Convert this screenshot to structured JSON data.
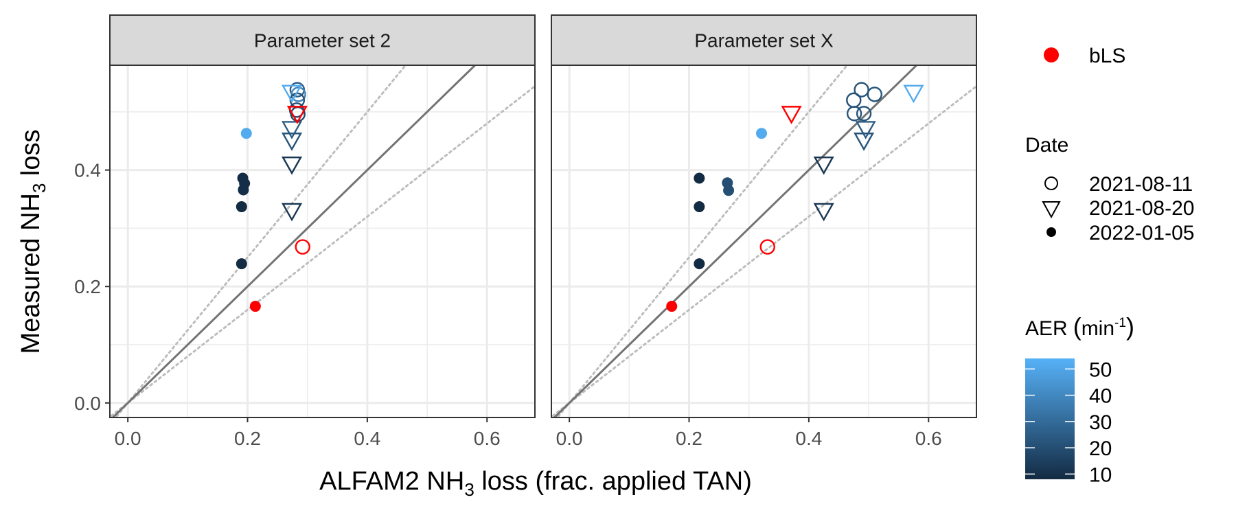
{
  "chart_data": {
    "type": "scatter",
    "xlabel": "ALFAM2 NH3 loss (frac. applied TAN)",
    "xlabel_parts": {
      "pre": "ALFAM2 NH",
      "sub": "3",
      "post": " loss (frac. applied TAN)"
    },
    "ylabel": "Measured NH3 loss",
    "ylabel_parts": {
      "pre": "Measured NH",
      "sub": "3",
      "post": " loss"
    },
    "xlim": [
      -0.03,
      0.68
    ],
    "ylim": [
      -0.025,
      0.58
    ],
    "x_ticks": [
      0.0,
      0.2,
      0.4,
      0.6
    ],
    "x_tick_labels": [
      "0.0",
      "0.2",
      "0.4",
      "0.6"
    ],
    "y_ticks": [
      0.0,
      0.2,
      0.4
    ],
    "y_tick_labels": [
      "0.0",
      "0.2",
      "0.4"
    ],
    "grid": true,
    "reference_lines": {
      "identity_slope": 1,
      "dotted_slopes": [
        0.8,
        1.25
      ]
    },
    "panels": [
      {
        "title": "Parameter set 2",
        "points": [
          {
            "x": 0.192,
            "y": 0.386,
            "date": "2022-01-05",
            "aer": 8
          },
          {
            "x": 0.195,
            "y": 0.377,
            "date": "2022-01-05",
            "aer": 9
          },
          {
            "x": 0.193,
            "y": 0.366,
            "date": "2022-01-05",
            "aer": 9
          },
          {
            "x": 0.19,
            "y": 0.337,
            "date": "2022-01-05",
            "aer": 8
          },
          {
            "x": 0.19,
            "y": 0.239,
            "date": "2022-01-05",
            "aer": 8
          },
          {
            "x": 0.198,
            "y": 0.463,
            "date": "2022-01-05",
            "aer": 52
          },
          {
            "x": 0.283,
            "y": 0.538,
            "date": "2021-08-11",
            "aer": 25
          },
          {
            "x": 0.285,
            "y": 0.53,
            "date": "2021-08-11",
            "aer": 38
          },
          {
            "x": 0.283,
            "y": 0.52,
            "date": "2021-08-11",
            "aer": 22
          },
          {
            "x": 0.282,
            "y": 0.503,
            "date": "2021-08-11",
            "aer": 20
          },
          {
            "x": 0.284,
            "y": 0.496,
            "date": "2021-08-11",
            "aer": 18
          },
          {
            "x": 0.274,
            "y": 0.533,
            "date": "2021-08-20",
            "aer": 52
          },
          {
            "x": 0.274,
            "y": 0.471,
            "date": "2021-08-20",
            "aer": 25
          },
          {
            "x": 0.274,
            "y": 0.451,
            "date": "2021-08-20",
            "aer": 22
          },
          {
            "x": 0.274,
            "y": 0.41,
            "date": "2021-08-20",
            "aer": 12
          },
          {
            "x": 0.274,
            "y": 0.33,
            "date": "2021-08-20",
            "aer": 12
          },
          {
            "x": 0.283,
            "y": 0.497,
            "date": "2021-08-20",
            "group": "bLS"
          },
          {
            "x": 0.292,
            "y": 0.268,
            "date": "2021-08-11",
            "group": "bLS"
          },
          {
            "x": 0.213,
            "y": 0.166,
            "date": "2022-01-05",
            "group": "bLS"
          }
        ]
      },
      {
        "title": "Parameter set X",
        "points": [
          {
            "x": 0.217,
            "y": 0.386,
            "date": "2022-01-05",
            "aer": 8
          },
          {
            "x": 0.217,
            "y": 0.337,
            "date": "2022-01-05",
            "aer": 8
          },
          {
            "x": 0.217,
            "y": 0.239,
            "date": "2022-01-05",
            "aer": 8
          },
          {
            "x": 0.264,
            "y": 0.378,
            "date": "2022-01-05",
            "aer": 20
          },
          {
            "x": 0.266,
            "y": 0.365,
            "date": "2022-01-05",
            "aer": 20
          },
          {
            "x": 0.321,
            "y": 0.463,
            "date": "2022-01-05",
            "aer": 52
          },
          {
            "x": 0.488,
            "y": 0.538,
            "date": "2021-08-11",
            "aer": 22
          },
          {
            "x": 0.51,
            "y": 0.53,
            "date": "2021-08-11",
            "aer": 22
          },
          {
            "x": 0.475,
            "y": 0.52,
            "date": "2021-08-11",
            "aer": 20
          },
          {
            "x": 0.476,
            "y": 0.497,
            "date": "2021-08-11",
            "aer": 22
          },
          {
            "x": 0.492,
            "y": 0.497,
            "date": "2021-08-11",
            "aer": 22
          },
          {
            "x": 0.575,
            "y": 0.533,
            "date": "2021-08-20",
            "aer": 52
          },
          {
            "x": 0.495,
            "y": 0.471,
            "date": "2021-08-20",
            "aer": 25
          },
          {
            "x": 0.492,
            "y": 0.451,
            "date": "2021-08-20",
            "aer": 22
          },
          {
            "x": 0.425,
            "y": 0.41,
            "date": "2021-08-20",
            "aer": 12
          },
          {
            "x": 0.425,
            "y": 0.33,
            "date": "2021-08-20",
            "aer": 12
          },
          {
            "x": 0.371,
            "y": 0.497,
            "date": "2021-08-20",
            "group": "bLS"
          },
          {
            "x": 0.331,
            "y": 0.268,
            "date": "2021-08-11",
            "group": "bLS"
          },
          {
            "x": 0.171,
            "y": 0.166,
            "date": "2022-01-05",
            "group": "bLS"
          }
        ]
      }
    ],
    "legend": {
      "placement": "right",
      "group_legend": {
        "label": "bLS",
        "color": "#ff0000"
      },
      "date_legend": {
        "title": "Date",
        "items": [
          {
            "label": "2021-08-11",
            "shape": "circle-open"
          },
          {
            "label": "2021-08-20",
            "shape": "triangle-down-open"
          },
          {
            "label": "2022-01-05",
            "shape": "circle-filled"
          }
        ]
      },
      "colorbar": {
        "title": "AER",
        "title_unit": "(min-1)",
        "title_unit_parts": {
          "open": "(",
          "base": "min",
          "sup": "-1",
          "close": ")"
        },
        "range": [
          8,
          54
        ],
        "ticks": [
          10,
          20,
          30,
          40,
          50
        ],
        "tick_labels": [
          "10",
          "20",
          "30",
          "40",
          "50"
        ],
        "low_color": "#132b43",
        "high_color": "#56b1f7"
      }
    },
    "colors": {
      "bLS": "#ff0000",
      "identity_line": "#737373",
      "dotted_line": "#bdbdbd",
      "strip_fill": "#d9d9d9",
      "grid": "#ebebeb"
    }
  }
}
